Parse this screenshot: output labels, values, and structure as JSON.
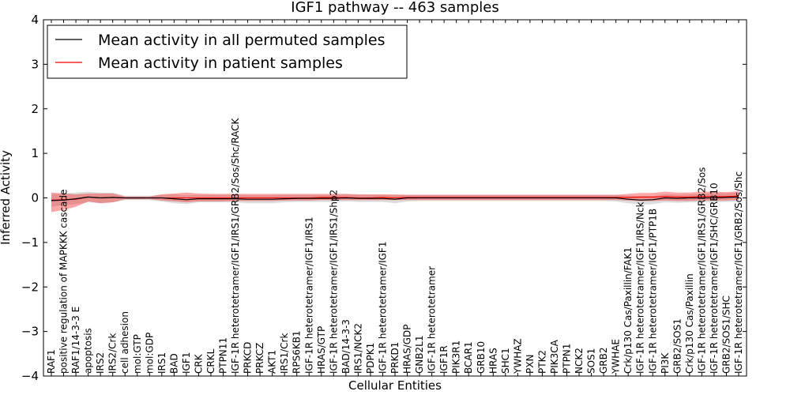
{
  "chart_data": {
    "type": "line",
    "title": "IGF1 pathway -- 463 samples",
    "xlabel": "Cellular Entities",
    "ylabel": "Inferred Activity",
    "ylim": [
      -4,
      4
    ],
    "yticks": [
      "4",
      "3",
      "2",
      "1",
      "0",
      "−1",
      "−2",
      "−3",
      "−4"
    ],
    "ytick_values": [
      4,
      3,
      2,
      1,
      0,
      -1,
      -2,
      -3,
      -4
    ],
    "legend_position": "top-left",
    "categories": [
      "RAF1",
      "positive regulation of MAPKKK cascade",
      "RAF1/14-3-3 E",
      "apoptosis",
      "IRS2",
      "IRS2/Crk",
      "cell adhesion",
      "mol:GTP",
      "mol:GDP",
      "IRS1",
      "BAD",
      "IGF1",
      "CRK",
      "CRKL",
      "PTPN11",
      "IGF-1R heterotetramer/IGF1/IRS1/GRB2/Sos/Shc/RACK",
      "PRKCD",
      "PRKCZ",
      "AKT1",
      "IRS1/Crk",
      "RPS6KB1",
      "IGF-1R heterotetramer/IGF1/IRS1",
      "HRAS/GTP",
      "IGF-1R heterotetramer/IGF1/IRS1/Shp2",
      "BAD/14-3-3",
      "IRS1/NCK2",
      "PDPK1",
      "IGF-1R heterotetramer/IGF1",
      "PRKD1",
      "HRAS/GDP",
      "GNB2L1",
      "IGF-1R heterotetramer",
      "IGF1R",
      "PIK3R1",
      "BCAR1",
      "GRB10",
      "HRAS",
      "SHC1",
      "YWHAZ",
      "PXN",
      "PTK2",
      "PIK3CA",
      "PTPN1",
      "NCK2",
      "SOS1",
      "GRB2",
      "YWHAE",
      "Crk/p130 Cas/Paxillin/FAK1",
      "IGF-1R heterotetramer/IGF1/IRS/Nck",
      "IGF-1R heterotetramer/IGF1/PTP1B",
      "PI3K",
      "GRB2/SOS1",
      "Crk/p130 Cas/Paxillin",
      "IGF-1R heterotetramer/IGF1/IRS1/GRB2/Sos",
      "IGF-1R heterotetramer/IGF1/SHC/GRB10",
      "GRB2/SOS1/SHC",
      "IGF-1R heterotetramer/IGF1/GRB2/Sos/Shc"
    ],
    "series": [
      {
        "name": "Mean activity in all permuted samples",
        "color": "#000000",
        "values": [
          -0.06,
          -0.05,
          -0.02,
          0.02,
          0.0,
          0.01,
          0.0,
          0.0,
          0.0,
          0.0,
          -0.02,
          -0.04,
          -0.02,
          -0.02,
          -0.02,
          -0.02,
          -0.03,
          -0.03,
          -0.03,
          -0.02,
          -0.01,
          -0.01,
          -0.01,
          -0.01,
          0.0,
          -0.01,
          -0.01,
          -0.01,
          -0.03,
          0.0,
          0.0,
          0.0,
          0.0,
          0.0,
          0.0,
          0.0,
          0.0,
          0.0,
          0.0,
          0.0,
          0.0,
          0.0,
          0.0,
          0.0,
          0.0,
          0.0,
          0.0,
          -0.03,
          -0.05,
          -0.04,
          0.0,
          -0.01,
          0.0,
          0.0,
          0.0,
          0.01,
          0.02
        ],
        "band_low": [
          -0.2,
          -0.16,
          -0.14,
          -0.1,
          -0.12,
          -0.1,
          -0.05,
          -0.05,
          -0.05,
          -0.08,
          -0.12,
          -0.14,
          -0.1,
          -0.1,
          -0.1,
          -0.1,
          -0.12,
          -0.12,
          -0.12,
          -0.1,
          -0.09,
          -0.09,
          -0.09,
          -0.09,
          -0.08,
          -0.09,
          -0.09,
          -0.09,
          -0.12,
          -0.08,
          -0.07,
          -0.07,
          -0.07,
          -0.07,
          -0.07,
          -0.07,
          -0.07,
          -0.07,
          -0.07,
          -0.07,
          -0.07,
          -0.07,
          -0.07,
          -0.07,
          -0.07,
          -0.07,
          -0.08,
          -0.12,
          -0.15,
          -0.14,
          -0.1,
          -0.11,
          -0.1,
          -0.1,
          -0.1,
          -0.09,
          -0.08
        ],
        "band_high": [
          0.08,
          0.1,
          0.12,
          0.14,
          0.12,
          0.12,
          0.05,
          0.05,
          0.05,
          0.07,
          0.08,
          0.06,
          0.07,
          0.07,
          0.07,
          0.07,
          0.06,
          0.06,
          0.06,
          0.07,
          0.07,
          0.07,
          0.07,
          0.07,
          0.08,
          0.07,
          0.07,
          0.07,
          0.06,
          0.07,
          0.07,
          0.07,
          0.07,
          0.07,
          0.07,
          0.07,
          0.07,
          0.07,
          0.07,
          0.07,
          0.07,
          0.07,
          0.07,
          0.07,
          0.07,
          0.07,
          0.07,
          0.05,
          0.04,
          0.04,
          0.08,
          0.07,
          0.08,
          0.09,
          0.1,
          0.11,
          0.12
        ]
      },
      {
        "name": "Mean activity in patient samples",
        "color": "#ff0000",
        "values": [
          -0.05,
          -0.04,
          -0.03,
          0.02,
          0.0,
          0.01,
          0.0,
          0.0,
          0.0,
          0.0,
          0.0,
          0.0,
          0.0,
          0.0,
          0.0,
          0.0,
          0.0,
          0.0,
          0.0,
          0.0,
          0.0,
          0.0,
          0.01,
          0.01,
          0.01,
          0.0,
          0.0,
          0.01,
          0.0,
          0.01,
          0.01,
          0.01,
          0.01,
          0.01,
          0.01,
          0.01,
          0.01,
          0.01,
          0.01,
          0.01,
          0.01,
          0.01,
          0.01,
          0.01,
          0.01,
          0.01,
          0.01,
          0.01,
          0.02,
          0.02,
          0.03,
          0.02,
          0.02,
          0.03,
          0.03,
          0.03,
          0.04
        ],
        "band_low": [
          -0.32,
          -0.27,
          -0.2,
          -0.08,
          -0.12,
          -0.1,
          -0.03,
          -0.03,
          -0.03,
          -0.06,
          -0.08,
          -0.1,
          -0.08,
          -0.08,
          -0.08,
          -0.07,
          -0.07,
          -0.07,
          -0.07,
          -0.06,
          -0.06,
          -0.06,
          -0.05,
          -0.05,
          -0.05,
          -0.05,
          -0.05,
          -0.05,
          -0.05,
          -0.05,
          -0.05,
          -0.05,
          -0.05,
          -0.05,
          -0.05,
          -0.05,
          -0.05,
          -0.05,
          -0.05,
          -0.05,
          -0.05,
          -0.05,
          -0.05,
          -0.05,
          -0.05,
          -0.05,
          -0.05,
          -0.06,
          -0.07,
          -0.07,
          -0.06,
          -0.07,
          -0.07,
          -0.06,
          -0.06,
          -0.06,
          -0.05
        ],
        "band_high": [
          0.12,
          0.1,
          0.08,
          0.1,
          0.1,
          0.1,
          0.03,
          0.03,
          0.03,
          0.08,
          0.1,
          0.12,
          0.1,
          0.09,
          0.09,
          0.09,
          0.09,
          0.09,
          0.09,
          0.09,
          0.09,
          0.09,
          0.09,
          0.09,
          0.09,
          0.08,
          0.08,
          0.08,
          0.08,
          0.07,
          0.07,
          0.07,
          0.07,
          0.07,
          0.07,
          0.07,
          0.07,
          0.07,
          0.07,
          0.07,
          0.07,
          0.07,
          0.07,
          0.07,
          0.07,
          0.07,
          0.07,
          0.09,
          0.11,
          0.11,
          0.14,
          0.12,
          0.12,
          0.14,
          0.14,
          0.13,
          0.15
        ]
      }
    ]
  }
}
